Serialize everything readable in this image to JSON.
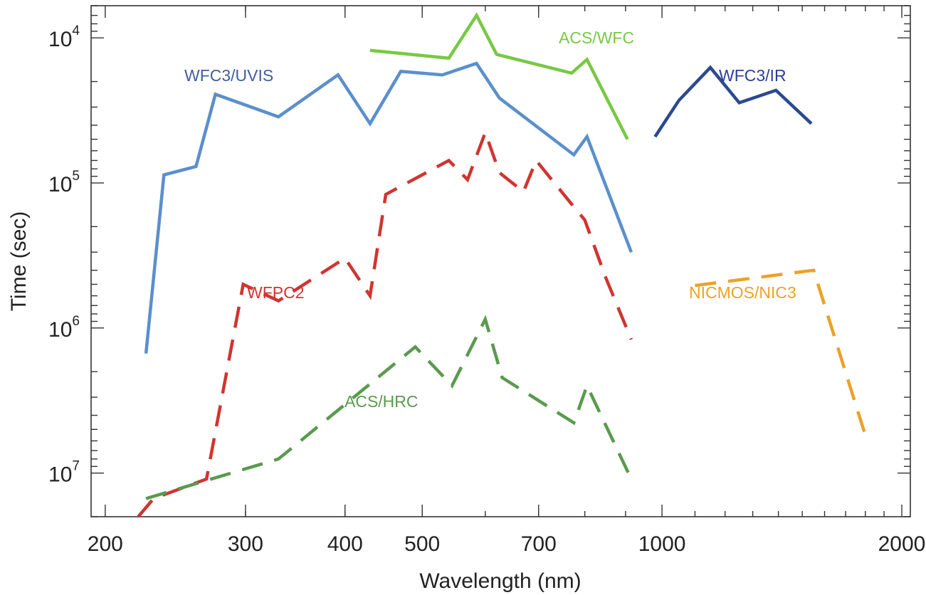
{
  "chart_data": {
    "type": "line",
    "xlabel": "Wavelength (nm)",
    "ylabel": "Time (sec)",
    "x_scale": "log",
    "y_scale": "log",
    "y_reversed": true,
    "xlim": [
      192,
      2050
    ],
    "ylim": [
      20000000,
      6000
    ],
    "x_ticks": [
      {
        "value": 200,
        "label": "200"
      },
      {
        "value": 300,
        "label": "300"
      },
      {
        "value": 400,
        "label": "400"
      },
      {
        "value": 500,
        "label": "500"
      },
      {
        "value": 700,
        "label": "700"
      },
      {
        "value": 1000,
        "label": "1000"
      },
      {
        "value": 2000,
        "label": "2000"
      }
    ],
    "y_ticks": [
      {
        "value": 10000,
        "base": "10",
        "exp": "4"
      },
      {
        "value": 100000,
        "base": "10",
        "exp": "5"
      },
      {
        "value": 1000000,
        "base": "10",
        "exp": "6"
      },
      {
        "value": 10000000,
        "base": "10",
        "exp": "7"
      }
    ],
    "grid": false,
    "legend": "none",
    "series": [
      {
        "name": "ACS/WFC",
        "color": "#77c944",
        "dash": "solid",
        "points": [
          [
            430,
            12200
          ],
          [
            540,
            13800
          ],
          [
            585,
            7000
          ],
          [
            620,
            13000
          ],
          [
            770,
            17500
          ],
          [
            805,
            14100
          ],
          [
            905,
            50000
          ]
        ]
      },
      {
        "name": "WFC3/UVIS",
        "color": "#5a8fcb",
        "dash": "solid",
        "points": [
          [
            225,
            1500000
          ],
          [
            237,
            88000
          ],
          [
            260,
            77000
          ],
          [
            275,
            24500
          ],
          [
            330,
            35000
          ],
          [
            392,
            18000
          ],
          [
            430,
            39000
          ],
          [
            470,
            17000
          ],
          [
            530,
            18000
          ],
          [
            585,
            15000
          ],
          [
            625,
            26000
          ],
          [
            775,
            64000
          ],
          [
            805,
            48000
          ],
          [
            915,
            300000
          ]
        ]
      },
      {
        "name": "WFC3/IR",
        "color": "#2a4a90",
        "dash": "solid",
        "points": [
          [
            980,
            48000
          ],
          [
            1050,
            27000
          ],
          [
            1150,
            16000
          ],
          [
            1250,
            28000
          ],
          [
            1390,
            23000
          ],
          [
            1540,
            39000
          ]
        ]
      },
      {
        "name": "WFPC2",
        "color": "#cf3530",
        "dash": "dashed",
        "points": [
          [
            220,
            20000000
          ],
          [
            230,
            15000000
          ],
          [
            268,
            11000000
          ],
          [
            298,
            500000
          ],
          [
            330,
            650000
          ],
          [
            400,
            330000
          ],
          [
            430,
            600000
          ],
          [
            450,
            120000
          ],
          [
            540,
            70000
          ],
          [
            570,
            95000
          ],
          [
            600,
            45000
          ],
          [
            625,
            85000
          ],
          [
            670,
            115000
          ],
          [
            695,
            70000
          ],
          [
            770,
            140000
          ],
          [
            800,
            180000
          ],
          [
            850,
            450000
          ],
          [
            915,
            1200000
          ]
        ]
      },
      {
        "name": "ACS/HRC",
        "color": "#5a9a4e",
        "dash": "dashed",
        "points": [
          [
            225,
            15000000
          ],
          [
            330,
            8000000
          ],
          [
            490,
            1350000
          ],
          [
            545,
            2500000
          ],
          [
            600,
            870000
          ],
          [
            630,
            2200000
          ],
          [
            775,
            4500000
          ],
          [
            805,
            2500000
          ],
          [
            915,
            11000000
          ]
        ]
      },
      {
        "name": "NICMOS/NIC3",
        "color": "#eba226",
        "dash": "dashed",
        "points": [
          [
            1100,
            510000
          ],
          [
            1550,
            400000
          ],
          [
            1800,
            5500000
          ]
        ]
      }
    ]
  }
}
